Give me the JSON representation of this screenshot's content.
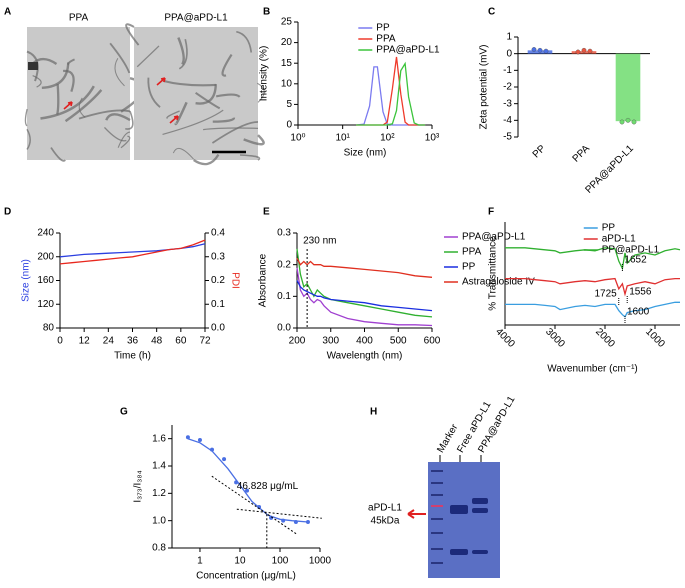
{
  "panel_labels": [
    "A",
    "B",
    "C",
    "D",
    "E",
    "F",
    "G",
    "H"
  ],
  "panel_a": {
    "images": [
      "PPA",
      "PPA@aPD-L1"
    ]
  },
  "panel_h": {
    "lanes": [
      "Marker",
      "Free aPD-L1",
      "PPA@aPD-L1"
    ],
    "band_label": [
      "aPD-L1",
      "45kDa"
    ]
  },
  "chart_data": [
    {
      "type": "line",
      "xlog": true,
      "xlabel": "Size (nm)",
      "ylabel": "Intensity (%)",
      "legend": "top-right",
      "x": [
        20,
        30,
        40,
        50,
        60,
        80,
        100,
        130,
        160,
        200,
        250,
        300,
        400,
        500,
        700
      ],
      "xlim": [
        1,
        1000
      ],
      "xticks": [
        {
          "value": 1,
          "label": "10⁰"
        },
        {
          "value": 10,
          "label": "10¹"
        },
        {
          "value": 100,
          "label": "10²"
        },
        {
          "value": 1000,
          "label": "10³"
        }
      ],
      "ylim": [
        0,
        25
      ],
      "yticks": [
        0,
        5,
        10,
        15,
        20,
        25
      ],
      "series": [
        {
          "name": "PP",
          "color": "#7b7bf0",
          "values": [
            0,
            0.2,
            4.6,
            14.1,
            14.1,
            3.2,
            0.2,
            0,
            0,
            0,
            0,
            0,
            0,
            0,
            0
          ]
        },
        {
          "name": "PPA",
          "color": "#ef3b2c",
          "values": [
            0,
            0,
            0,
            0,
            0,
            0,
            0.7,
            8.8,
            16.5,
            7.5,
            0.7,
            0,
            0,
            0,
            0
          ]
        },
        {
          "name": "PPA@aPD-L1",
          "color": "#3cc43c",
          "values": [
            0,
            0,
            0,
            0,
            0,
            0,
            0,
            0.3,
            3.5,
            13.2,
            14.9,
            6.8,
            0.5,
            0,
            0
          ]
        }
      ]
    },
    {
      "type": "bar",
      "ylabel": "Zeta potential (mV)",
      "categories": [
        "PP",
        "PPA",
        "PPA@aPD-L1"
      ],
      "values": [
        0.2,
        0.15,
        -4.05
      ],
      "colors": [
        "#4a6fe3",
        "#e8553f",
        "#6fdc6f"
      ],
      "points": [
        [
          0.25,
          0.2,
          0.15
        ],
        [
          0.1,
          0.2,
          0.15
        ],
        [
          -4.1,
          -4.0,
          -4.1
        ]
      ],
      "ylim": [
        -5,
        1
      ],
      "yticks": [
        1,
        0,
        -1,
        -2,
        -3,
        -4,
        -5
      ]
    },
    {
      "type": "line",
      "xlabel": "Time (h)",
      "ylabel": "Size (nm)",
      "y2label": "PDI",
      "x": [
        0,
        6,
        12,
        18,
        24,
        30,
        36,
        42,
        48,
        54,
        60,
        66,
        72
      ],
      "xlim": [
        0,
        72
      ],
      "xticks": [
        0,
        12,
        24,
        36,
        48,
        60,
        72
      ],
      "ylim": [
        80,
        240
      ],
      "yticks": [
        80,
        120,
        160,
        200,
        240
      ],
      "y2lim": [
        0,
        0.4
      ],
      "y2ticks": [
        {
          "value": 0,
          "label": "0.0"
        },
        0.1,
        0.2,
        0.3,
        0.4
      ],
      "series": [
        {
          "color": "#2b3fe0",
          "values": [
            200,
            202,
            204,
            205,
            206,
            207,
            208,
            209,
            210,
            212,
            214,
            217,
            222
          ]
        },
        {
          "color": "#e8281e",
          "axis": "y2",
          "values": [
            0.27,
            0.275,
            0.28,
            0.285,
            0.29,
            0.295,
            0.3,
            0.31,
            0.32,
            0.33,
            0.335,
            0.35,
            0.37
          ]
        }
      ]
    },
    {
      "type": "line",
      "xlabel": "Wavelength (nm)",
      "ylabel": "Absorbance",
      "legend": "right",
      "annotation": {
        "value": 230,
        "label": "230 nm"
      },
      "x": [
        200,
        210,
        220,
        230,
        240,
        250,
        260,
        270,
        280,
        300,
        350,
        400,
        450,
        500,
        550,
        600
      ],
      "xlim": [
        200,
        600
      ],
      "xticks": [
        200,
        300,
        400,
        500,
        600
      ],
      "ylim": [
        0,
        0.3
      ],
      "yticks": [
        {
          "value": 0,
          "label": "0.0"
        },
        0.1,
        0.2,
        0.3
      ],
      "series": [
        {
          "name": "PPA@aPD-L1",
          "color": "#a040d0",
          "values": [
            0.19,
            0.12,
            0.1,
            0.11,
            0.09,
            0.08,
            0.09,
            0.085,
            0.07,
            0.05,
            0.03,
            0.02,
            0.015,
            0.01,
            0.01,
            0.008
          ]
        },
        {
          "name": "PPA",
          "color": "#30b030",
          "values": [
            0.25,
            0.17,
            0.13,
            0.14,
            0.12,
            0.1,
            0.12,
            0.11,
            0.1,
            0.09,
            0.08,
            0.07,
            0.06,
            0.05,
            0.04,
            0.035
          ]
        },
        {
          "name": "PP",
          "color": "#1a2ee0",
          "values": [
            0.15,
            0.13,
            0.12,
            0.115,
            0.11,
            0.105,
            0.1,
            0.1,
            0.095,
            0.09,
            0.085,
            0.08,
            0.07,
            0.065,
            0.06,
            0.055
          ]
        },
        {
          "name": "Astragaloside IV",
          "color": "#e03020",
          "values": [
            0.22,
            0.2,
            0.21,
            0.2,
            0.21,
            0.2,
            0.2,
            0.2,
            0.195,
            0.195,
            0.19,
            0.185,
            0.18,
            0.175,
            0.165,
            0.16
          ]
        }
      ]
    },
    {
      "type": "line",
      "xlabel": "Wavenumber (cm⁻¹)",
      "ylabel": "% Transmittance",
      "legend": "top-right",
      "annotations": [
        1652,
        1725,
        1556,
        1600
      ],
      "x": [
        4000,
        3600,
        3400,
        3200,
        3000,
        2900,
        2600,
        2400,
        2200,
        2000,
        1800,
        1725,
        1652,
        1600,
        1556,
        1400,
        1200,
        1000,
        800,
        600,
        500
      ],
      "xlim": [
        4000,
        500
      ],
      "xticks": [
        4000,
        3000,
        2000,
        1000
      ],
      "ylim": [
        0,
        100
      ],
      "series": [
        {
          "name": "PP",
          "color": "#3a9ee0",
          "values": [
            20,
            20,
            20,
            19,
            18,
            15,
            18,
            19,
            18,
            20,
            20,
            14,
            10,
            8,
            12,
            14,
            15,
            18,
            20,
            22,
            22
          ]
        },
        {
          "name": "aPD-L1",
          "color": "#e03030",
          "values": [
            45,
            45,
            44,
            43,
            42,
            40,
            42,
            43,
            42,
            44,
            45,
            35,
            40,
            30,
            38,
            40,
            42,
            40,
            44,
            45,
            45
          ]
        },
        {
          "name": "PP@aPD-L1",
          "color": "#30b030",
          "values": [
            75,
            75,
            74,
            73,
            72,
            70,
            72,
            73,
            72,
            75,
            74,
            62,
            55,
            70,
            60,
            68,
            70,
            68,
            72,
            74,
            73
          ]
        }
      ]
    },
    {
      "type": "scatter",
      "xlog": true,
      "xlabel": "Concentration (μg/mL)",
      "ylabel": "I₃₇₃/I₃₈₄",
      "color": "#4a6fe3",
      "annotation": {
        "value": 46.828,
        "label": "46.828 μg/mL"
      },
      "xlim": [
        0.2,
        1000
      ],
      "xticks": [
        1,
        10,
        100,
        1000
      ],
      "ylim": [
        0.8,
        1.7
      ],
      "yticks": [
        0.8,
        {
          "value": 1,
          "label": "1.0"
        },
        1.2,
        1.4,
        1.6
      ],
      "points_x": [
        0.5,
        1,
        2,
        4,
        8,
        15,
        30,
        60,
        120,
        250,
        500
      ],
      "points_y": [
        1.61,
        1.59,
        1.52,
        1.45,
        1.28,
        1.22,
        1.1,
        1.02,
        1.0,
        0.99,
        0.99
      ],
      "fit_x": [
        0.5,
        1,
        2,
        5,
        10,
        20,
        50,
        100,
        200,
        500
      ],
      "fit_y": [
        1.6,
        1.57,
        1.51,
        1.38,
        1.26,
        1.14,
        1.04,
        1.01,
        1.0,
        0.99
      ]
    }
  ]
}
